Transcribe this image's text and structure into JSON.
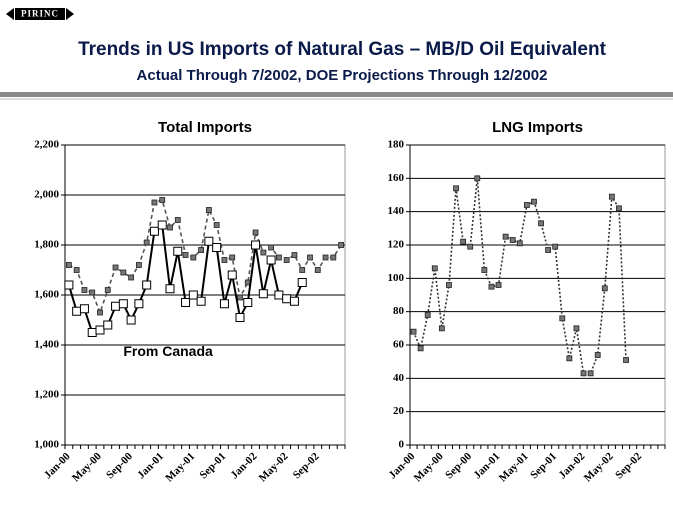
{
  "header": {
    "logo": "PIRINC",
    "title": "Trends in US Imports of Natural Gas – MB/D Oil Equivalent",
    "subtitle": "Actual Through 7/2002, DOE Projections Through 12/2002"
  },
  "chart_data": [
    {
      "type": "line",
      "title": "Total Imports",
      "categories": [
        "Jan-00",
        null,
        null,
        null,
        "May-00",
        null,
        null,
        null,
        "Sep-00",
        null,
        null,
        null,
        "Jan-01",
        null,
        null,
        null,
        "May-01",
        null,
        null,
        null,
        "Sep-01",
        null,
        null,
        null,
        "Jan-02",
        null,
        null,
        null,
        "May-02",
        null,
        null,
        null,
        "Sep-02",
        null,
        null,
        null
      ],
      "series": [
        {
          "color": "#555555",
          "line_style": "dashed",
          "marker": "small-square",
          "values": [
            1720,
            1700,
            1620,
            1610,
            1530,
            1620,
            1710,
            1690,
            1670,
            1720,
            1810,
            1970,
            1980,
            1870,
            1900,
            1760,
            1750,
            1780,
            1940,
            1880,
            1740,
            1750,
            1590,
            1650,
            1850,
            1770,
            1790,
            1750,
            1740,
            1760,
            1700,
            1750,
            1700,
            1750,
            1750,
            1800
          ]
        },
        {
          "name": "From Canada",
          "color": "#000000",
          "line_style": "solid",
          "marker": "open-square",
          "values": [
            1640,
            1535,
            1545,
            1450,
            1460,
            1480,
            1555,
            1565,
            1500,
            1565,
            1640,
            1855,
            1880,
            1625,
            1775,
            1570,
            1600,
            1575,
            1815,
            1790,
            1565,
            1680,
            1510,
            1570,
            1800,
            1605,
            1740,
            1600,
            1585,
            1575,
            1650,
            null,
            null,
            null,
            null,
            null
          ]
        }
      ],
      "ylim": [
        1000,
        2200
      ],
      "yticks": [
        {
          "value": 1000,
          "label": "1,000"
        },
        {
          "value": 1200,
          "label": "1,200"
        },
        {
          "value": 1400,
          "label": "1,400"
        },
        {
          "value": 1600,
          "label": "1,600"
        },
        {
          "value": 1800,
          "label": "1,800"
        },
        {
          "value": 2000,
          "label": "2,000"
        },
        {
          "value": 2200,
          "label": "2,200"
        }
      ],
      "grid": true
    },
    {
      "type": "line",
      "title": "LNG Imports",
      "categories": [
        "Jan-00",
        null,
        null,
        null,
        "May-00",
        null,
        null,
        null,
        "Sep-00",
        null,
        null,
        null,
        "Jan-01",
        null,
        null,
        null,
        "May-01",
        null,
        null,
        null,
        "Sep-01",
        null,
        null,
        null,
        "Jan-02",
        null,
        null,
        null,
        "May-02",
        null,
        null,
        null,
        "Sep-02",
        null,
        null,
        null
      ],
      "series": [
        {
          "color": "#333333",
          "line_style": "dotted",
          "marker": "small-square",
          "values": [
            68,
            58,
            78,
            106,
            70,
            96,
            154,
            122,
            119,
            160,
            105,
            95,
            96,
            125,
            123,
            121,
            144,
            146,
            133,
            117,
            119,
            76,
            52,
            70,
            43,
            43,
            54,
            94,
            149,
            142,
            51,
            null,
            null,
            null,
            null,
            null
          ]
        }
      ],
      "ylim": [
        0,
        180
      ],
      "yticks": [
        0,
        20,
        40,
        60,
        80,
        100,
        120,
        140,
        160,
        180
      ],
      "grid": true
    }
  ]
}
